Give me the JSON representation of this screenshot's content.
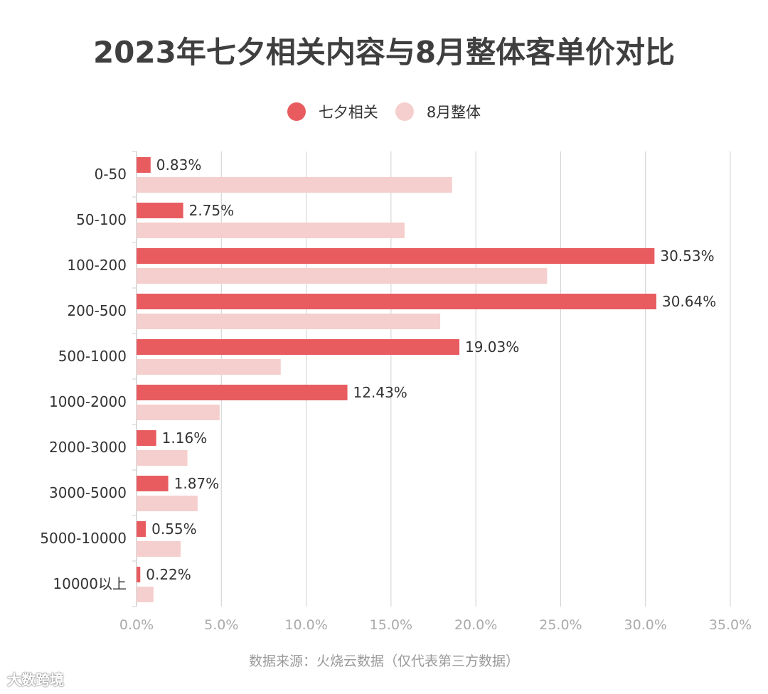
{
  "title": "2023年七夕相关内容与8月整体客单价对比",
  "legend": {
    "series1": "七夕相关",
    "series2": "8月整体"
  },
  "colors": {
    "series1": "#e85c60",
    "series2": "#f5cfcd",
    "grid": "#cfcfcf",
    "axis_label": "#333333",
    "tick_label": "#aaaaaa"
  },
  "source": "数据来源：火烧云数据（仅代表第三方数据）",
  "watermark": "大数跨境",
  "chart_data": {
    "type": "bar",
    "orientation": "horizontal",
    "title": "2023年七夕相关内容与8月整体客单价对比",
    "categories": [
      "0-50",
      "50-100",
      "100-200",
      "200-500",
      "500-1000",
      "1000-2000",
      "2000-3000",
      "3000-5000",
      "5000-10000",
      "10000以上"
    ],
    "series": [
      {
        "name": "七夕相关",
        "values": [
          0.83,
          2.75,
          30.53,
          30.64,
          19.03,
          12.43,
          1.16,
          1.87,
          0.55,
          0.22
        ],
        "labels": [
          "0.83%",
          "2.75%",
          "30.53%",
          "30.64%",
          "19.03%",
          "12.43%",
          "1.16%",
          "1.87%",
          "0.55%",
          "0.22%"
        ]
      },
      {
        "name": "8月整体",
        "values": [
          18.6,
          15.8,
          24.2,
          17.9,
          8.5,
          4.9,
          3.0,
          3.6,
          2.6,
          1.0
        ]
      }
    ],
    "xlim": [
      0,
      35
    ],
    "xticks": [
      "0.0%",
      "5.0%",
      "10.0%",
      "15.0%",
      "20.0%",
      "25.0%",
      "30.0%",
      "35.0%"
    ],
    "grid": true,
    "legend_position": "top-center"
  }
}
